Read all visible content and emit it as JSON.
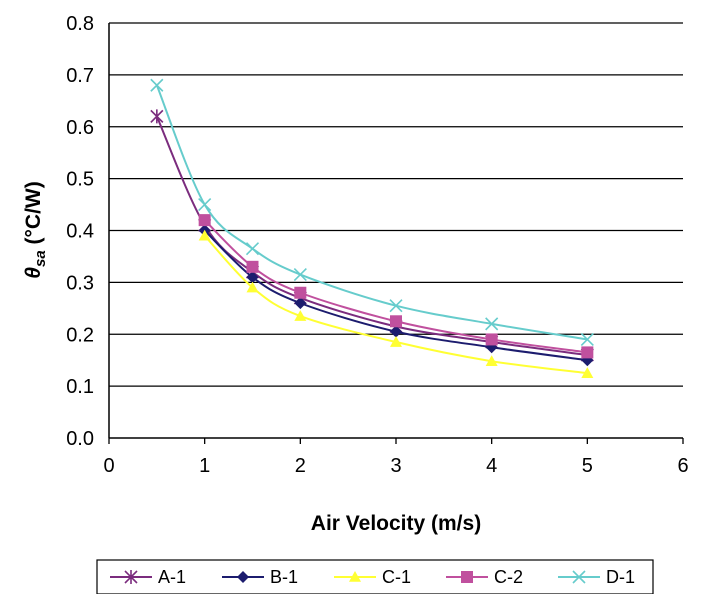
{
  "chart_data": {
    "type": "line",
    "xlabel": "Air Velocity (m/s)",
    "ylabel_symbol": "θ",
    "ylabel_subscript": "sa",
    "ylabel_unit": " (°C/W)",
    "xlim": [
      0,
      6
    ],
    "ylim": [
      0.0,
      0.8
    ],
    "xticks": [
      "0",
      "1",
      "2",
      "3",
      "4",
      "5",
      "6"
    ],
    "yticks": [
      "0.0",
      "0.1",
      "0.2",
      "0.3",
      "0.4",
      "0.5",
      "0.6",
      "0.7",
      "0.8"
    ],
    "grid": "horizontal",
    "legend_position": "bottom",
    "series": [
      {
        "name": "A-1",
        "color": "#7B2C7E",
        "marker": "star",
        "x": [
          0.5,
          1,
          1.5,
          2,
          3,
          4,
          5
        ],
        "y": [
          0.62,
          0.41,
          0.32,
          0.27,
          0.215,
          0.185,
          0.16
        ]
      },
      {
        "name": "B-1",
        "color": "#1C1C6E",
        "marker": "diamond",
        "x": [
          1,
          1.5,
          2,
          3,
          4,
          5
        ],
        "y": [
          0.4,
          0.31,
          0.26,
          0.205,
          0.175,
          0.15
        ]
      },
      {
        "name": "C-1",
        "color": "#FFFF33",
        "marker": "triangle",
        "x": [
          1,
          1.5,
          2,
          3,
          4,
          5
        ],
        "y": [
          0.39,
          0.29,
          0.235,
          0.185,
          0.148,
          0.125
        ]
      },
      {
        "name": "C-2",
        "color": "#C0509E",
        "marker": "square",
        "x": [
          1,
          1.5,
          2,
          3,
          4,
          5
        ],
        "y": [
          0.42,
          0.33,
          0.28,
          0.225,
          0.19,
          0.165
        ]
      },
      {
        "name": "D-1",
        "color": "#66CCCC",
        "marker": "x",
        "x": [
          0.5,
          1,
          1.5,
          2,
          3,
          4,
          5
        ],
        "y": [
          0.68,
          0.45,
          0.365,
          0.315,
          0.255,
          0.22,
          0.19
        ]
      }
    ]
  }
}
